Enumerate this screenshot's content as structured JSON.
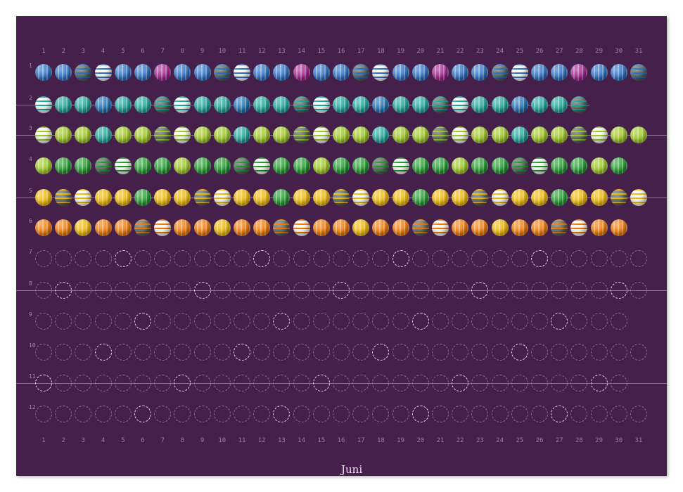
{
  "title": "Juni",
  "day_numbers": [
    "1",
    "2",
    "3",
    "4",
    "5",
    "6",
    "7",
    "8",
    "9",
    "10",
    "11",
    "12",
    "13",
    "14",
    "15",
    "16",
    "17",
    "18",
    "19",
    "20",
    "21",
    "22",
    "23",
    "24",
    "25",
    "26",
    "27",
    "28",
    "29",
    "30",
    "31"
  ],
  "months": [
    {
      "label": "1",
      "days": 31,
      "white": [
        4,
        11,
        18,
        25
      ],
      "dark": [
        3,
        10,
        17,
        24,
        31
      ],
      "alt": [
        7,
        14,
        21,
        28
      ],
      "color": "#2a6fc4",
      "alt_color": "#a0208e",
      "filled": true
    },
    {
      "label": "2",
      "days": 28,
      "white": [
        1,
        8,
        15,
        22
      ],
      "dark": [
        7,
        14,
        21,
        28
      ],
      "alt": [
        4,
        11,
        18,
        25
      ],
      "color": "#1aa59a",
      "alt_color": "#1a6fb0",
      "filled": true
    },
    {
      "label": "3",
      "days": 31,
      "white": [
        1,
        8,
        15,
        22,
        29
      ],
      "dark": [
        7,
        14,
        21,
        28
      ],
      "alt": [
        4,
        11,
        18,
        25
      ],
      "color": "#9cc81e",
      "alt_color": "#1aa59a",
      "filled": true
    },
    {
      "label": "4",
      "days": 30,
      "white": [
        5,
        12,
        19,
        26
      ],
      "dark": [
        4,
        11,
        18,
        25
      ],
      "alt": [
        1,
        8,
        15,
        22,
        29
      ],
      "color": "#1e9a2a",
      "alt_color": "#9cc81e",
      "filled": true
    },
    {
      "label": "5",
      "days": 31,
      "white": [
        3,
        10,
        17,
        24,
        31
      ],
      "dark": [
        2,
        9,
        16,
        23,
        30
      ],
      "alt": [
        6,
        13,
        20,
        27
      ],
      "color": "#f0b800",
      "alt_color": "#1e9a2a",
      "filled": true
    },
    {
      "label": "6",
      "days": 30,
      "white": [
        7,
        14,
        21,
        28
      ],
      "dark": [
        6,
        13,
        20,
        27
      ],
      "alt": [
        3,
        10,
        17,
        24
      ],
      "color": "#f07800",
      "alt_color": "#f0b800",
      "filled": true
    },
    {
      "label": "7",
      "days": 31,
      "white": [
        5,
        12,
        19,
        26
      ],
      "filled": false
    },
    {
      "label": "8",
      "days": 31,
      "white": [
        2,
        9,
        16,
        23,
        30
      ],
      "filled": false
    },
    {
      "label": "9",
      "days": 30,
      "white": [
        6,
        13,
        20,
        27
      ],
      "filled": false
    },
    {
      "label": "10",
      "days": 31,
      "white": [
        4,
        11,
        18,
        25
      ],
      "filled": false
    },
    {
      "label": "11",
      "days": 30,
      "white": [
        1,
        8,
        15,
        22,
        29
      ],
      "filled": false
    },
    {
      "label": "12",
      "days": 31,
      "white": [
        6,
        13,
        20,
        27
      ],
      "filled": false
    }
  ],
  "colors": {
    "background": "#45204b",
    "dark_bead": "#4e5a52",
    "white_bead": "#f4f4f0"
  }
}
